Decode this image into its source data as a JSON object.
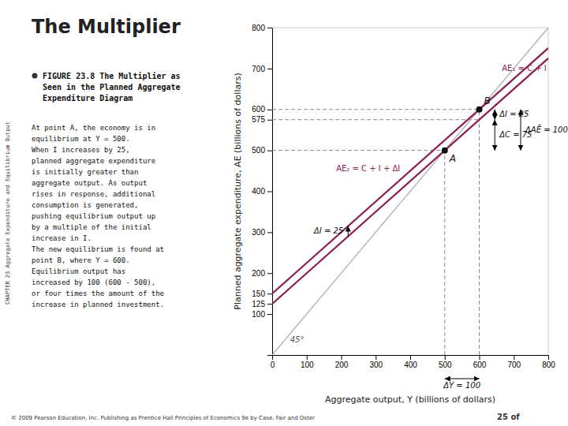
{
  "chart_data": {
    "type": "line",
    "title": "The Multiplier",
    "caption": "FIGURE 23.8  The Multiplier as\nSeen in the Planned Aggregate\nExpenditure Diagram",
    "body": "At point A, the economy is in\nequilibrium at Y = 500.\nWhen I  increases by 25,\nplanned aggregate expenditure\nis initially greater than\naggregate output. As output\nrises in response, additional\nconsumption is generated,\npushing equilibrium output up\nby a multiple of the initial\nincrease in I.\nThe new equilibrium is found at\npoint B, where Y = 600.\nEquilibrium output has\nincreased by 100 (600 - 500),\nor four times the amount of the\nincrease in planned investment.",
    "side_label": "CHAPTER 23  Aggregate Expenditure and Equilibrium Output",
    "footer": "© 2009 Pearson Education, Inc.  Publishing as Prentice Hall   Principles of Economics 9e  by  Case, Fair and Oster",
    "page_number": "25 of",
    "x_label": "Aggregate output, Y (billions of dollars)",
    "y_label": "Planned aggregate expenditure, AE (billions of dollars)",
    "x": [
      0,
      800
    ],
    "series": [
      {
        "name": "45°",
        "color": "#aaaaaa",
        "values": [
          0,
          800
        ]
      },
      {
        "name": "AE₁ = C + I",
        "color": "#8b2252",
        "values": [
          125,
          725
        ]
      },
      {
        "name": "AE₂ = C + I + ΔI",
        "color": "#8b2252",
        "values": [
          150,
          750
        ]
      }
    ],
    "points": {
      "x": [
        500,
        600
      ],
      "y": [
        500,
        600
      ],
      "labels": [
        "A",
        "B"
      ],
      "color": "#111111"
    },
    "guides": {
      "color": "#888888",
      "line_style": "dashed",
      "lines": [
        {
          "x": [
            500,
            500
          ],
          "y": [
            0,
            500
          ]
        },
        {
          "x": [
            0,
            500
          ],
          "y": [
            500,
            500
          ]
        },
        {
          "x": [
            600,
            600
          ],
          "y": [
            0,
            600
          ]
        },
        {
          "x": [
            0,
            600
          ],
          "y": [
            600,
            600
          ]
        },
        {
          "x": [
            0,
            600
          ],
          "y": [
            575,
            575
          ]
        }
      ]
    },
    "annotations": [
      {
        "text": "ΔI = 25",
        "y": [
          575,
          600
        ],
        "arrow": "<->"
      },
      {
        "text": "ΔC = 75",
        "y": [
          500,
          575
        ],
        "arrow": "<->"
      },
      {
        "text": "ΔAĒ = 100",
        "y": [
          500,
          600
        ],
        "arrow": "<->"
      },
      {
        "text": "ΔI = 25",
        "y": [
          290,
          315
        ],
        "arrow": "->"
      },
      {
        "text": "ΔY = 100",
        "x": [
          500,
          600
        ],
        "arrow": "<->"
      }
    ],
    "xlim": [
      0,
      800
    ],
    "ylim": [
      0,
      800
    ],
    "xticks": [
      0,
      100,
      200,
      300,
      400,
      500,
      600,
      700,
      800
    ],
    "yticks": [
      100,
      125,
      150,
      200,
      300,
      400,
      500,
      575,
      600,
      700,
      800
    ],
    "grid": false
  }
}
